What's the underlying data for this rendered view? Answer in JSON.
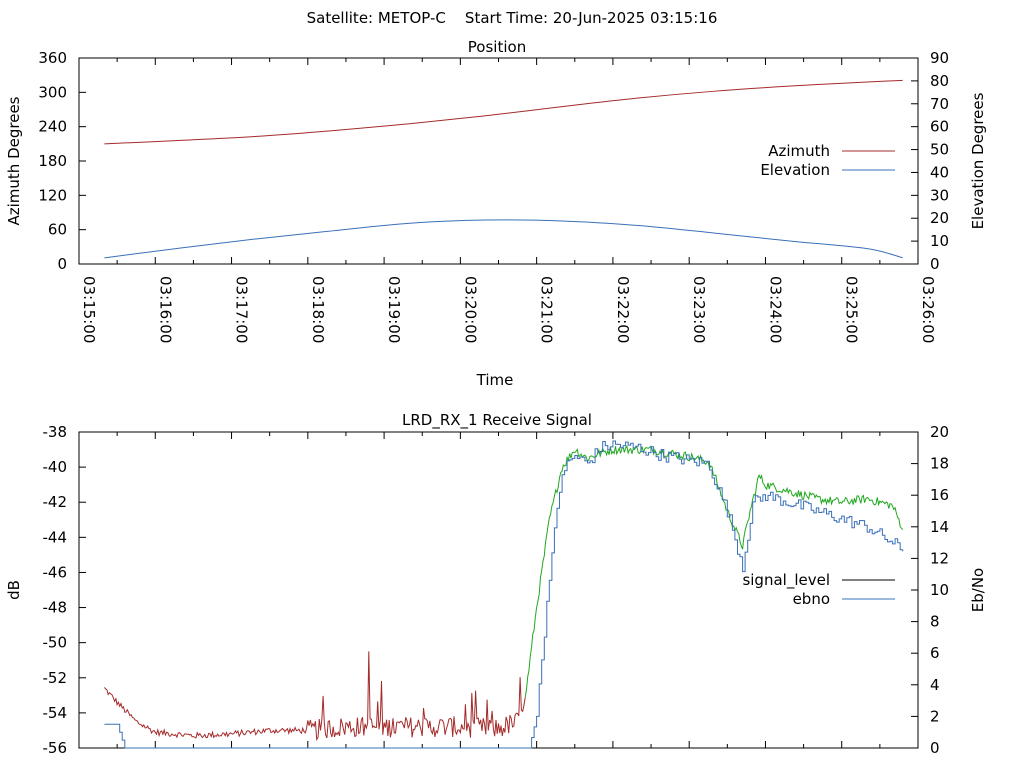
{
  "header": {
    "title": "Satellite: METOP-C    Start Time: 20-Jun-2025 03:15:16"
  },
  "colors": {
    "azimuth": "#a52a2a",
    "elevation": "#3a70b8",
    "signal_red": "#a52a2a",
    "signal_green": "#1fa81f",
    "ebno": "#3a70b8",
    "signal_level_legend": "#000000"
  },
  "chart_data": [
    {
      "type": "line",
      "title": "Position",
      "xlabel": "Time",
      "ylabel": "Azimuth Degrees",
      "y2label": "Elevation Degrees",
      "xlim": [
        "03:15:00",
        "03:26:00"
      ],
      "ylim": [
        0,
        360
      ],
      "y2lim": [
        0,
        90
      ],
      "x_ticks": [
        "03:15:00",
        "03:16:00",
        "03:17:00",
        "03:18:00",
        "03:19:00",
        "03:20:00",
        "03:21:00",
        "03:22:00",
        "03:23:00",
        "03:24:00",
        "03:25:00",
        "03:26:00"
      ],
      "y_ticks": [
        "0",
        "60",
        "120",
        "180",
        "240",
        "300",
        "360"
      ],
      "y2_ticks": [
        "0",
        "10",
        "20",
        "30",
        "40",
        "50",
        "60",
        "70",
        "80",
        "90"
      ],
      "legend_position": "right",
      "series": [
        {
          "name": "Azimuth",
          "axis": "left",
          "x": [
            "03:15:20",
            "03:16:20",
            "03:17:20",
            "03:18:20",
            "03:19:20",
            "03:20:20",
            "03:21:20",
            "03:22:20",
            "03:23:20",
            "03:24:20",
            "03:25:20",
            "03:25:48"
          ],
          "values": [
            210,
            216,
            223,
            233,
            245,
            259,
            275,
            290,
            302,
            311,
            318,
            321
          ]
        },
        {
          "name": "Elevation",
          "axis": "right",
          "x": [
            "03:15:20",
            "03:16:20",
            "03:17:20",
            "03:18:20",
            "03:19:20",
            "03:20:20",
            "03:21:20",
            "03:22:20",
            "03:23:20",
            "03:24:20",
            "03:25:20",
            "03:25:48"
          ],
          "values": [
            2.7,
            7.0,
            11.0,
            14.5,
            17.8,
            19.2,
            18.8,
            16.8,
            13.5,
            10.0,
            6.7,
            2.7
          ]
        }
      ]
    },
    {
      "type": "line",
      "title": "LRD_RX_1 Receive Signal",
      "ylabel": "dB",
      "y2label": "Eb/No",
      "ylim": [
        -56,
        -38
      ],
      "y2lim": [
        0,
        20
      ],
      "y_ticks": [
        "-56",
        "-54",
        "-52",
        "-50",
        "-48",
        "-46",
        "-44",
        "-42",
        "-40",
        "-38"
      ],
      "y2_ticks": [
        "0",
        "2",
        "4",
        "6",
        "8",
        "10",
        "12",
        "14",
        "16",
        "18",
        "20"
      ],
      "legend_position": "right",
      "series": [
        {
          "name": "signal_level",
          "axis": "left",
          "x": [
            "03:15:20",
            "03:15:30",
            "03:15:45",
            "03:16:00",
            "03:16:30",
            "03:17:00",
            "03:17:30",
            "03:18:00",
            "03:18:30",
            "03:19:00",
            "03:19:30",
            "03:20:00",
            "03:20:30",
            "03:20:45",
            "03:20:52",
            "03:21:00",
            "03:21:10",
            "03:21:20",
            "03:21:30",
            "03:21:40",
            "03:21:50",
            "03:22:00",
            "03:22:30",
            "03:23:00",
            "03:23:15",
            "03:23:20",
            "03:23:30",
            "03:23:42",
            "03:23:48",
            "03:23:55",
            "03:24:00",
            "03:24:20",
            "03:24:40",
            "03:25:00",
            "03:25:20",
            "03:25:40",
            "03:25:48"
          ],
          "values": [
            -52.6,
            -53.4,
            -54.5,
            -55.1,
            -55.3,
            -55.2,
            -55.0,
            -55.0,
            -54.8,
            -54.8,
            -54.8,
            -54.8,
            -54.9,
            -54.5,
            -52.6,
            -48.0,
            -43.0,
            -40.0,
            -39.0,
            -39.5,
            -39.2,
            -39.0,
            -39.0,
            -39.4,
            -39.7,
            -40.5,
            -42.5,
            -44.5,
            -42.5,
            -40.5,
            -41.0,
            -41.4,
            -41.8,
            -42.0,
            -41.8,
            -42.2,
            -43.5
          ]
        },
        {
          "name": "ebno",
          "axis": "right",
          "x": [
            "03:15:20",
            "03:15:30",
            "03:15:36",
            "03:20:54",
            "03:21:00",
            "03:21:10",
            "03:21:20",
            "03:21:30",
            "03:21:40",
            "03:21:50",
            "03:22:00",
            "03:22:20",
            "03:22:40",
            "03:23:00",
            "03:23:15",
            "03:23:30",
            "03:23:42",
            "03:23:50",
            "03:24:00",
            "03:24:20",
            "03:24:40",
            "03:25:00",
            "03:25:20",
            "03:25:40",
            "03:25:48"
          ],
          "values": [
            1.5,
            1.5,
            0,
            0,
            2,
            11,
            17.5,
            18.5,
            18.0,
            19.0,
            19.2,
            19.0,
            18.5,
            18.2,
            18.0,
            15.0,
            11.5,
            15.5,
            16.0,
            15.5,
            15.0,
            14.5,
            14.0,
            13.0,
            12.5
          ]
        }
      ]
    }
  ]
}
